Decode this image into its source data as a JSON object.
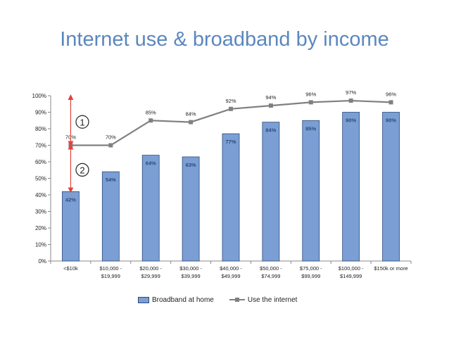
{
  "title": "Internet use & broadband by income",
  "colors": {
    "bar_fill": "#7b9fd4",
    "bar_stroke": "#2d4a7a",
    "line": "#808080",
    "bar_label": "#2d4a7a",
    "arrow": "#e0443c",
    "title": "#5b87bf"
  },
  "annotations": [
    "1",
    "2"
  ],
  "chart_data": {
    "type": "bar",
    "categories": [
      "<$10k",
      "$10,000 -\n$19,999",
      "$20,000 -\n$29,999",
      "$30,000 -\n$39,999",
      "$40,000 -\n$49,999",
      "$50,000 -\n$74,999",
      "$75,000 -\n$99,999",
      "$100,000 -\n$149,999",
      "$150k or more"
    ],
    "series": [
      {
        "name": "Broadband at home",
        "type": "bar",
        "values": [
          42,
          54,
          64,
          63,
          77,
          84,
          85,
          90,
          90
        ],
        "labels": [
          "42%",
          "54%",
          "64%",
          "63%",
          "77%",
          "84%",
          "85%",
          "90%",
          "90%"
        ]
      },
      {
        "name": "Use the internet",
        "type": "line",
        "values": [
          70,
          70,
          85,
          84,
          92,
          94,
          96,
          97,
          96
        ],
        "labels": [
          "70%",
          "70%",
          "85%",
          "84%",
          "92%",
          "94%",
          "96%",
          "97%",
          "96%"
        ]
      }
    ],
    "ylim": [
      0,
      100
    ],
    "yticks": [
      "0%",
      "10%",
      "20%",
      "30%",
      "40%",
      "50%",
      "60%",
      "70%",
      "80%",
      "90%",
      "100%"
    ],
    "legend": "bottom",
    "grid": false
  }
}
